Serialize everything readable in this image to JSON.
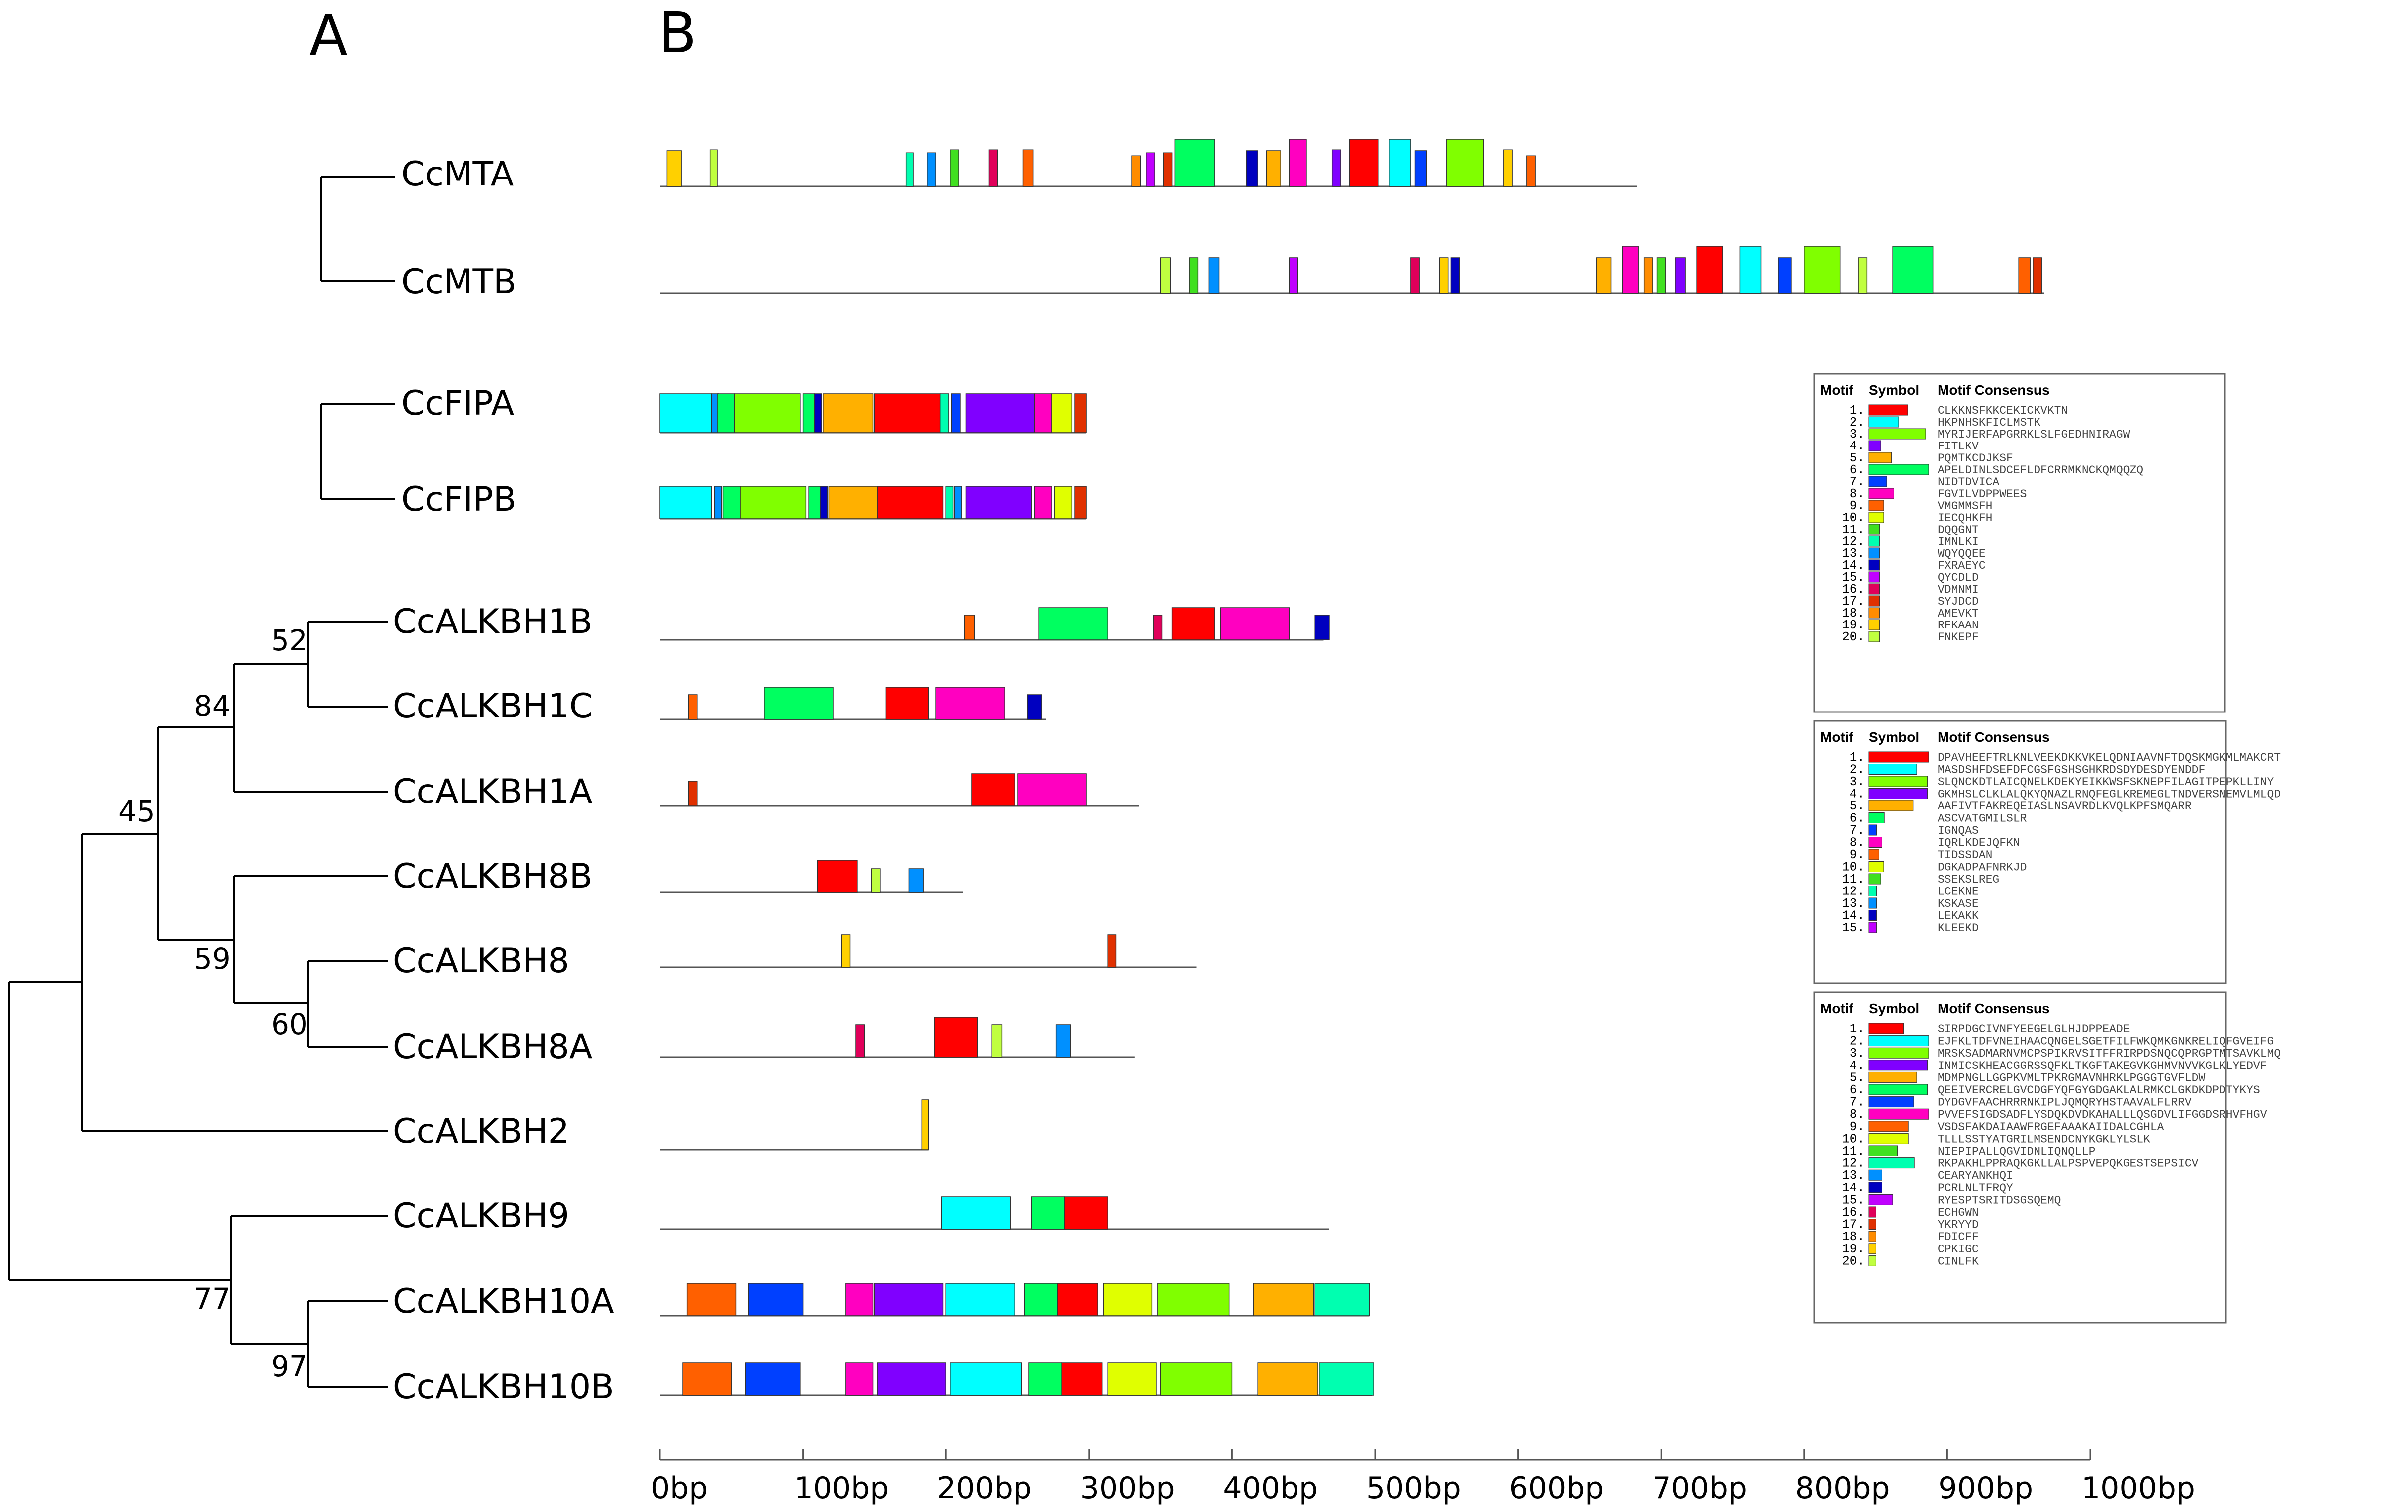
{
  "figure": {
    "panel_a_label": "A",
    "panel_b_label": "B"
  },
  "tree": {
    "taxa": [
      "CcMTA",
      "CcMTB",
      "CcFIPA",
      "CcFIPB",
      "CcALKBH1B",
      "CcALKBH1C",
      "CcALKBH1A",
      "CcALKBH8B",
      "CcALKBH8",
      "CcALKBH8A",
      "CcALKBH2",
      "CcALKBH9",
      "CcALKBH10A",
      "CcALKBH10B"
    ],
    "bootstrap": [
      "52",
      "84",
      "45",
      "59",
      "60",
      "77",
      "97"
    ]
  },
  "axis": {
    "ticks": [
      "0bp",
      "100bp",
      "200bp",
      "300bp",
      "400bp",
      "500bp",
      "600bp",
      "700bp",
      "800bp",
      "900bp",
      "1000bp"
    ],
    "tick_values": [
      0,
      100,
      200,
      300,
      400,
      500,
      600,
      700,
      800,
      900,
      1000
    ]
  },
  "colors": {
    "palette": [
      "#ff0000",
      "#00ffff",
      "#80ff00",
      "#8000ff",
      "#ffb000",
      "#00ff60",
      "#0040ff",
      "#ff00c0",
      "#ff6000",
      "#e0ff00",
      "#40e020",
      "#00ffb0",
      "#0090ff",
      "#0000c0",
      "#c000ff",
      "#e0005a",
      "#e03000",
      "#ff8c00",
      "#ffd000",
      "#c0ff40"
    ]
  },
  "chart_data": {
    "type": "motif-map",
    "xlabel": "bp",
    "xlim": [
      0,
      1000
    ],
    "sequences": [
      {
        "name": "CcMTA",
        "length": 683,
        "motifs": [
          [
            5,
            10,
            19
          ],
          [
            35,
            5,
            20
          ],
          [
            172,
            5,
            12
          ],
          [
            187,
            6,
            13
          ],
          [
            203,
            6,
            11
          ],
          [
            230,
            6,
            16
          ],
          [
            254,
            7,
            9
          ],
          [
            330,
            6,
            18
          ],
          [
            340,
            6,
            15
          ],
          [
            352,
            6,
            17
          ],
          [
            360,
            28,
            6
          ],
          [
            410,
            8,
            14
          ],
          [
            424,
            10,
            5
          ],
          [
            440,
            12,
            8
          ],
          [
            470,
            6,
            4
          ],
          [
            482,
            20,
            1
          ],
          [
            510,
            15,
            2
          ],
          [
            528,
            8,
            7
          ],
          [
            550,
            26,
            3
          ],
          [
            590,
            6,
            19
          ],
          [
            606,
            6,
            9
          ]
        ]
      },
      {
        "name": "CcMTB",
        "length": 968,
        "motifs": [
          [
            350,
            7,
            20
          ],
          [
            370,
            6,
            11
          ],
          [
            384,
            7,
            13
          ],
          [
            440,
            6,
            15
          ],
          [
            525,
            6,
            16
          ],
          [
            545,
            6,
            19
          ],
          [
            553,
            6,
            14
          ],
          [
            655,
            10,
            5
          ],
          [
            673,
            11,
            8
          ],
          [
            688,
            6,
            18
          ],
          [
            697,
            6,
            11
          ],
          [
            710,
            7,
            4
          ],
          [
            725,
            18,
            1
          ],
          [
            755,
            15,
            2
          ],
          [
            782,
            9,
            7
          ],
          [
            800,
            25,
            3
          ],
          [
            838,
            6,
            20
          ],
          [
            862,
            28,
            6
          ],
          [
            950,
            8,
            9
          ],
          [
            960,
            6,
            17
          ]
        ]
      },
      {
        "name": "CcFIPA",
        "length": 298,
        "motifs": [
          [
            0,
            36,
            2
          ],
          [
            36,
            5,
            13
          ],
          [
            40,
            12,
            6
          ],
          [
            52,
            46,
            3
          ],
          [
            100,
            8,
            6
          ],
          [
            108,
            5,
            14
          ],
          [
            114,
            35,
            5
          ],
          [
            150,
            46,
            1
          ],
          [
            196,
            6,
            12
          ],
          [
            204,
            6,
            7
          ],
          [
            214,
            48,
            4
          ],
          [
            262,
            12,
            8
          ],
          [
            274,
            14,
            10
          ],
          [
            290,
            8,
            17
          ]
        ]
      },
      {
        "name": "CcFIPB",
        "length": 298,
        "motifs": [
          [
            0,
            36,
            2
          ],
          [
            38,
            5,
            13
          ],
          [
            44,
            12,
            6
          ],
          [
            56,
            46,
            3
          ],
          [
            104,
            8,
            6
          ],
          [
            112,
            5,
            14
          ],
          [
            118,
            34,
            5
          ],
          [
            152,
            46,
            1
          ],
          [
            200,
            5,
            12
          ],
          [
            206,
            5,
            13
          ],
          [
            214,
            46,
            4
          ],
          [
            262,
            12,
            8
          ],
          [
            276,
            12,
            10
          ],
          [
            290,
            8,
            17
          ]
        ]
      },
      {
        "name": "CcALKBH1B",
        "length": 464,
        "motifs": [
          [
            213,
            7,
            9
          ],
          [
            265,
            48,
            6
          ],
          [
            345,
            6,
            16
          ],
          [
            358,
            30,
            1
          ],
          [
            392,
            48,
            8
          ],
          [
            458,
            10,
            14
          ]
        ]
      },
      {
        "name": "CcALKBH1C",
        "length": 270,
        "motifs": [
          [
            20,
            6,
            9
          ],
          [
            73,
            48,
            6
          ],
          [
            158,
            30,
            1
          ],
          [
            193,
            48,
            8
          ],
          [
            257,
            10,
            14
          ]
        ]
      },
      {
        "name": "CcALKBH1A",
        "length": 335,
        "motifs": [
          [
            20,
            6,
            17
          ],
          [
            218,
            30,
            1
          ],
          [
            250,
            48,
            8
          ]
        ]
      },
      {
        "name": "CcALKBH8B",
        "length": 212,
        "motifs": [
          [
            110,
            28,
            1
          ],
          [
            148,
            6,
            20
          ],
          [
            174,
            10,
            13
          ]
        ]
      },
      {
        "name": "CcALKBH8",
        "length": 375,
        "motifs": [
          [
            127,
            6,
            19
          ],
          [
            313,
            6,
            17
          ]
        ]
      },
      {
        "name": "CcALKBH8A",
        "length": 332,
        "motifs": [
          [
            137,
            6,
            16
          ],
          [
            192,
            30,
            1
          ],
          [
            232,
            7,
            20
          ],
          [
            277,
            10,
            13
          ]
        ]
      },
      {
        "name": "CcALKBH2",
        "length": 188,
        "motifs": [
          [
            183,
            5,
            19
          ]
        ]
      },
      {
        "name": "CcALKBH9",
        "length": 468,
        "motifs": [
          [
            197,
            48,
            2
          ],
          [
            260,
            23,
            6
          ],
          [
            283,
            30,
            1
          ]
        ]
      },
      {
        "name": "CcALKBH10A",
        "length": 496,
        "motifs": [
          [
            19,
            34,
            9
          ],
          [
            62,
            38,
            7
          ],
          [
            130,
            19,
            8
          ],
          [
            150,
            48,
            4
          ],
          [
            200,
            48,
            2
          ],
          [
            255,
            23,
            6
          ],
          [
            278,
            28,
            1
          ],
          [
            310,
            34,
            10
          ],
          [
            348,
            50,
            3
          ],
          [
            415,
            42,
            5
          ],
          [
            458,
            38,
            12
          ]
        ]
      },
      {
        "name": "CcALKBH10B",
        "length": 498,
        "motifs": [
          [
            16,
            34,
            9
          ],
          [
            60,
            38,
            7
          ],
          [
            130,
            19,
            8
          ],
          [
            152,
            48,
            4
          ],
          [
            203,
            50,
            2
          ],
          [
            258,
            23,
            6
          ],
          [
            281,
            28,
            1
          ],
          [
            313,
            34,
            10
          ],
          [
            350,
            50,
            3
          ],
          [
            418,
            42,
            5
          ],
          [
            461,
            38,
            12
          ]
        ]
      }
    ]
  },
  "legends": [
    {
      "header": "Motif Symbol Motif Consensus",
      "header_parts": [
        "Motif",
        "Symbol",
        "Motif Consensus"
      ],
      "entries": [
        {
          "num": "1.",
          "color": "#ff0000",
          "w": 0.65,
          "consensus": "CLKKNSFKKCEKICKVKTN"
        },
        {
          "num": "2.",
          "color": "#00ffff",
          "w": 0.5,
          "consensus": "HKPNHSKFICLMSTK"
        },
        {
          "num": "3.",
          "color": "#80ff00",
          "w": 0.95,
          "consensus": "MYRIJERFAPGRRKLSLFGEDHNIRAGW"
        },
        {
          "num": "4.",
          "color": "#8000ff",
          "w": 0.2,
          "consensus": "FITLKV"
        },
        {
          "num": "5.",
          "color": "#ffb000",
          "w": 0.38,
          "consensus": "PQMTKCDJKSF"
        },
        {
          "num": "6.",
          "color": "#00ff60",
          "w": 1.0,
          "consensus": "APELDINLSDCEFLDFCRRMKNCKQMQQZQ"
        },
        {
          "num": "7.",
          "color": "#0040ff",
          "w": 0.3,
          "consensus": "NIDTDVICA"
        },
        {
          "num": "8.",
          "color": "#ff00c0",
          "w": 0.42,
          "consensus": "FGVILVDPPWEES"
        },
        {
          "num": "9.",
          "color": "#ff6000",
          "w": 0.25,
          "consensus": "VMGMMSFH"
        },
        {
          "num": "10.",
          "color": "#e0ff00",
          "w": 0.25,
          "consensus": "IECQHKFH"
        },
        {
          "num": "11.",
          "color": "#40e020",
          "w": 0.18,
          "consensus": "DQQGNT"
        },
        {
          "num": "12.",
          "color": "#00ffb0",
          "w": 0.18,
          "consensus": "IMNLKI"
        },
        {
          "num": "13.",
          "color": "#0090ff",
          "w": 0.18,
          "consensus": "WQYQQEE"
        },
        {
          "num": "14.",
          "color": "#0000c0",
          "w": 0.18,
          "consensus": "FXRAEYC"
        },
        {
          "num": "15.",
          "color": "#c000ff",
          "w": 0.18,
          "consensus": "QYCDLD"
        },
        {
          "num": "16.",
          "color": "#e0005a",
          "w": 0.18,
          "consensus": "VDMNMI"
        },
        {
          "num": "17.",
          "color": "#e03000",
          "w": 0.18,
          "consensus": "SYJDCD"
        },
        {
          "num": "18.",
          "color": "#ff8c00",
          "w": 0.18,
          "consensus": "AMEVKT"
        },
        {
          "num": "19.",
          "color": "#ffd000",
          "w": 0.18,
          "consensus": "RFKAAN"
        },
        {
          "num": "20.",
          "color": "#c0ff40",
          "w": 0.18,
          "consensus": "FNKEPF"
        }
      ]
    },
    {
      "header": "Motif Symbol Motif Consensus",
      "header_parts": [
        "Motif",
        "Symbol",
        "Motif Consensus"
      ],
      "entries": [
        {
          "num": "1.",
          "color": "#ff0000",
          "w": 1.0,
          "consensus": "DPAVHEEFTRLKNLVEEKDKKVKELQDNIAAVNFTDQSKMGKMLMAKCRT"
        },
        {
          "num": "2.",
          "color": "#00ffff",
          "w": 0.8,
          "consensus": "MASDSHFDSEFDFCGSFGSHSGHKRDSDYDESDYENDDF"
        },
        {
          "num": "3.",
          "color": "#80ff00",
          "w": 0.98,
          "consensus": "SLQNCKDTLAICQNELKDEKYEIKKWSFSKNEPFILAGITPEPKLLINY"
        },
        {
          "num": "4.",
          "color": "#8000ff",
          "w": 0.98,
          "consensus": "GKMHSLCLKLALQKYQNAZLRNQFEGLKREMEGLTNDVERSNEMVLMLQD"
        },
        {
          "num": "5.",
          "color": "#ffb000",
          "w": 0.74,
          "consensus": "AAFIVTFAKREQEIASLNSAVRDLKVQLKPFSMQARR"
        },
        {
          "num": "6.",
          "color": "#00ff60",
          "w": 0.26,
          "consensus": "ASCVATGMILSLR"
        },
        {
          "num": "7.",
          "color": "#0040ff",
          "w": 0.13,
          "consensus": "IGNQAS"
        },
        {
          "num": "8.",
          "color": "#ff00c0",
          "w": 0.22,
          "consensus": "IQRLKDEJQFKN"
        },
        {
          "num": "9.",
          "color": "#ff6000",
          "w": 0.17,
          "consensus": "TIDSSDAN"
        },
        {
          "num": "10.",
          "color": "#e0ff00",
          "w": 0.25,
          "consensus": "DGKADPAFNRKJD"
        },
        {
          "num": "11.",
          "color": "#40e020",
          "w": 0.2,
          "consensus": "SSEKSLREG"
        },
        {
          "num": "12.",
          "color": "#00ffb0",
          "w": 0.13,
          "consensus": "LCEKNE"
        },
        {
          "num": "13.",
          "color": "#0090ff",
          "w": 0.13,
          "consensus": "KSKASE"
        },
        {
          "num": "14.",
          "color": "#0000c0",
          "w": 0.13,
          "consensus": "LEKAKK"
        },
        {
          "num": "15.",
          "color": "#c000ff",
          "w": 0.13,
          "consensus": "KLEEKD"
        }
      ]
    },
    {
      "header": "Motif Symbol Motif Consensus",
      "header_parts": [
        "Motif",
        "Symbol",
        "Motif Consensus"
      ],
      "entries": [
        {
          "num": "1.",
          "color": "#ff0000",
          "w": 0.58,
          "consensus": "SIRPDGCIVNFYEEGELGLHJDPPEADE"
        },
        {
          "num": "2.",
          "color": "#00ffff",
          "w": 1.0,
          "consensus": "EJFKLTDFVNEIHAACQNGELSGETFILFWKQMKGNKRELIQFGVEIFG"
        },
        {
          "num": "3.",
          "color": "#80ff00",
          "w": 1.0,
          "consensus": "MRSKSADMARNVMCPSPIKRVSITFFRIRPDSNQCQPRGPTMTSAVKLMQ"
        },
        {
          "num": "4.",
          "color": "#8000ff",
          "w": 0.98,
          "consensus": "INMICSKHEACGGRSSQFKLTKGFTAKEGVKGHMVNVVKGLKLYEDVF"
        },
        {
          "num": "5.",
          "color": "#ffb000",
          "w": 0.8,
          "consensus": "MDMPNGLLGGPKVMLTPKRGMAVNHRKLPGGGTGVFLDW"
        },
        {
          "num": "6.",
          "color": "#00ff60",
          "w": 0.98,
          "consensus": "QEEIVERCRELGVCDGFYQFGYGDGAKLALRMKCLGKDKDPDTYKYS"
        },
        {
          "num": "7.",
          "color": "#0040ff",
          "w": 0.75,
          "consensus": "DYDGVFAACHRRRNKIPLJQMQRYHSTAAVALFLRRV"
        },
        {
          "num": "8.",
          "color": "#ff00c0",
          "w": 1.0,
          "consensus": "PVVEFSIGDSADFLYSDQKDVDKAHALLLQSGDVLIFGGDSRHVFHGV"
        },
        {
          "num": "9.",
          "color": "#ff6000",
          "w": 0.66,
          "consensus": "VSDSFAKDAIAAWFRGEFAAAKAIIDALCGHLA"
        },
        {
          "num": "10.",
          "color": "#e0ff00",
          "w": 0.66,
          "consensus": "TLLLSSTYATGRILMSENDCNYKGKLYLSLK"
        },
        {
          "num": "11.",
          "color": "#40e020",
          "w": 0.48,
          "consensus": "NIEPIPALLQGVIDNLIQNQLLP"
        },
        {
          "num": "12.",
          "color": "#00ffb0",
          "w": 0.76,
          "consensus": "RKPAKHLPPRAQKGKLLALPSPVEPQKGESTSEPSICV"
        },
        {
          "num": "13.",
          "color": "#0090ff",
          "w": 0.22,
          "consensus": "CEARYANKHQI"
        },
        {
          "num": "14.",
          "color": "#0000c0",
          "w": 0.22,
          "consensus": "PCRLNLTFRQY"
        },
        {
          "num": "15.",
          "color": "#c000ff",
          "w": 0.4,
          "consensus": "RYESPTSRITDSGSQEMQ"
        },
        {
          "num": "16.",
          "color": "#e0005a",
          "w": 0.12,
          "consensus": "ECHGWN"
        },
        {
          "num": "17.",
          "color": "#e03000",
          "w": 0.12,
          "consensus": "YKRYYD"
        },
        {
          "num": "18.",
          "color": "#ff8c00",
          "w": 0.12,
          "consensus": "FDICFF"
        },
        {
          "num": "19.",
          "color": "#ffd000",
          "w": 0.12,
          "consensus": "CPKIGC"
        },
        {
          "num": "20.",
          "color": "#c0ff40",
          "w": 0.12,
          "consensus": "CINLFK"
        }
      ]
    }
  ]
}
